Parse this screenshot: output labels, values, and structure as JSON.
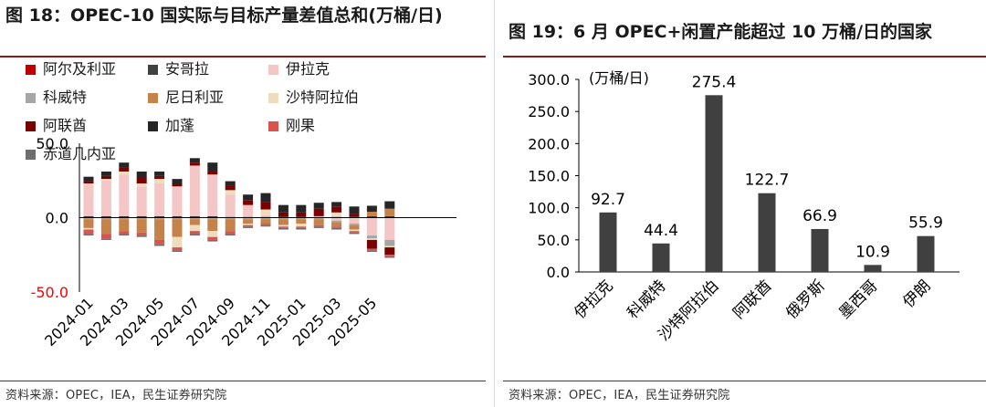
{
  "left": {
    "title": "图 18：OPEC-10 国实际与目标产量差值总和(万桶/日)",
    "source": "资料来源：OPEC，IEA，民生证券研究院",
    "legend": [
      {
        "name": "阿尔及利亚",
        "color": "#c00000"
      },
      {
        "name": "安哥拉",
        "color": "#404040"
      },
      {
        "name": "伊拉克",
        "color": "#f4c6c6"
      },
      {
        "name": "科威特",
        "color": "#a6a6a6"
      },
      {
        "name": "尼日利亚",
        "color": "#c5834a"
      },
      {
        "name": "沙特阿拉伯",
        "color": "#eedcbc"
      },
      {
        "name": "阿联酋",
        "color": "#7b0000"
      },
      {
        "name": "加蓬",
        "color": "#262626"
      },
      {
        "name": "刚果",
        "color": "#d9534f"
      },
      {
        "name": "赤道几内亚",
        "color": "#6e6e6e"
      }
    ],
    "chart_data": {
      "type": "bar",
      "stacked": true,
      "title": "OPEC-10 国实际与目标产量差值总和(万桶/日)",
      "y_tick_labels": [
        "50.0",
        "0.0",
        "-50.0"
      ],
      "ylim": [
        -50,
        50
      ],
      "categories": [
        "2024-01",
        "2024-02",
        "2024-03",
        "2024-04",
        "2024-05",
        "2024-06",
        "2024-07",
        "2024-08",
        "2024-09",
        "2024-10",
        "2024-11",
        "2024-12",
        "2025-01",
        "2025-02",
        "2025-03",
        "2025-04",
        "2025-05",
        "2025-06"
      ],
      "x_tick_labels": [
        "2024-01",
        "2024-03",
        "2024-05",
        "2024-07",
        "2024-09",
        "2024-11",
        "2025-01",
        "2025-03",
        "2025-05"
      ],
      "series": [
        {
          "name": "阿尔及利亚",
          "values": [
            1.0,
            1.0,
            1.0,
            1.0,
            1.0,
            1.0,
            1.0,
            1.0,
            0.5,
            0.5,
            0.5,
            0.5,
            0.5,
            0.5,
            0.5,
            0.5,
            1.0,
            1.0
          ]
        },
        {
          "name": "安哥拉",
          "values": [
            0,
            0,
            0,
            0,
            0,
            0,
            0,
            0,
            0,
            0,
            0,
            0,
            0,
            0,
            0,
            0,
            0,
            0
          ]
        },
        {
          "name": "伊拉克",
          "values": [
            22.0,
            24.0,
            28.0,
            20.0,
            22.0,
            20.0,
            34.0,
            28.0,
            15.0,
            8.0,
            1.0,
            0,
            0,
            0,
            -2.0,
            -4.0,
            -12.0,
            -15.0
          ]
        },
        {
          "name": "科威特",
          "values": [
            -1.0,
            -1.0,
            -1.0,
            -1.0,
            -1.0,
            -1.0,
            -1.0,
            -1.0,
            -1.0,
            -1.0,
            -1.0,
            -1.0,
            -1.0,
            -1.0,
            -1.0,
            -1.0,
            -2.0,
            -4.0
          ]
        },
        {
          "name": "尼日利亚",
          "values": [
            -6.0,
            -10.0,
            -8.0,
            -9.0,
            -14.0,
            -12.0,
            -4.0,
            -8.0,
            -8.0,
            -3.0,
            -3.0,
            -4.0,
            -3.0,
            -4.0,
            -3.0,
            -3.0,
            3.0,
            5.0
          ]
        },
        {
          "name": "沙特阿拉伯",
          "values": [
            -1.0,
            1.0,
            2.0,
            2.0,
            3.0,
            -7.0,
            -4.0,
            -4.0,
            3.0,
            -1.0,
            4.0,
            -1.0,
            -2.0,
            0.5,
            3.0,
            -1.0,
            -1.0,
            -1.0
          ]
        },
        {
          "name": "阿联酋",
          "values": [
            1.5,
            2.0,
            3.0,
            4.0,
            2.0,
            2.0,
            2.0,
            2.0,
            3.0,
            3.0,
            5.0,
            3.0,
            3.0,
            5.0,
            4.0,
            2.0,
            -6.0,
            -5.0
          ]
        },
        {
          "name": "加蓬",
          "values": [
            3.0,
            3.0,
            3.0,
            4.0,
            3.0,
            3.0,
            3.0,
            6.0,
            3.0,
            4.0,
            6.0,
            5.0,
            5.0,
            4.0,
            3.0,
            5.0,
            4.0,
            5.0
          ]
        },
        {
          "name": "刚果",
          "values": [
            -3.0,
            -3.0,
            -2.0,
            -2.0,
            -3.0,
            -2.0,
            -2.0,
            -2.0,
            -2.0,
            -1.0,
            -1.0,
            -1.0,
            -1.0,
            -1.0,
            -1.0,
            -1.0,
            -1.0,
            -1.0
          ]
        },
        {
          "name": "赤道几内亚",
          "values": [
            -1.0,
            -1.0,
            -1.0,
            -1.0,
            -1.0,
            -1.0,
            -1.0,
            -1.0,
            -1.0,
            -1.0,
            -1.0,
            -1.0,
            -1.0,
            -1.0,
            -1.0,
            -1.0,
            -1.0,
            -1.0
          ]
        }
      ],
      "colors": {
        "negative_tick_label": "#ff0000",
        "axis": "#000000"
      }
    }
  },
  "right": {
    "title": "图 19：6 月 OPEC+闲置产能超过 10 万桶/日的国家",
    "source": "资料来源：OPEC，IEA，民生证券研究院",
    "chart_data": {
      "type": "bar",
      "title": "6 月 OPEC+闲置产能超过 10 万桶/日的国家",
      "unit_label": "(万桶/日)",
      "categories": [
        "伊拉克",
        "科威特",
        "沙特阿拉伯",
        "阿联酋",
        "俄罗斯",
        "墨西哥",
        "伊朗"
      ],
      "values": [
        92.7,
        44.4,
        275.4,
        122.7,
        66.9,
        10.9,
        55.9
      ],
      "value_labels": [
        "92.7",
        "44.4",
        "275.4",
        "122.7",
        "66.9",
        "10.9",
        "55.9"
      ],
      "ylim": [
        0,
        300
      ],
      "y_ticks": [
        0,
        50,
        100,
        150,
        200,
        250,
        300
      ],
      "y_tick_labels": [
        "0.0",
        "50.0",
        "100.0",
        "150.0",
        "200.0",
        "250.0",
        "300.0"
      ],
      "bar_color": "#404040"
    }
  }
}
